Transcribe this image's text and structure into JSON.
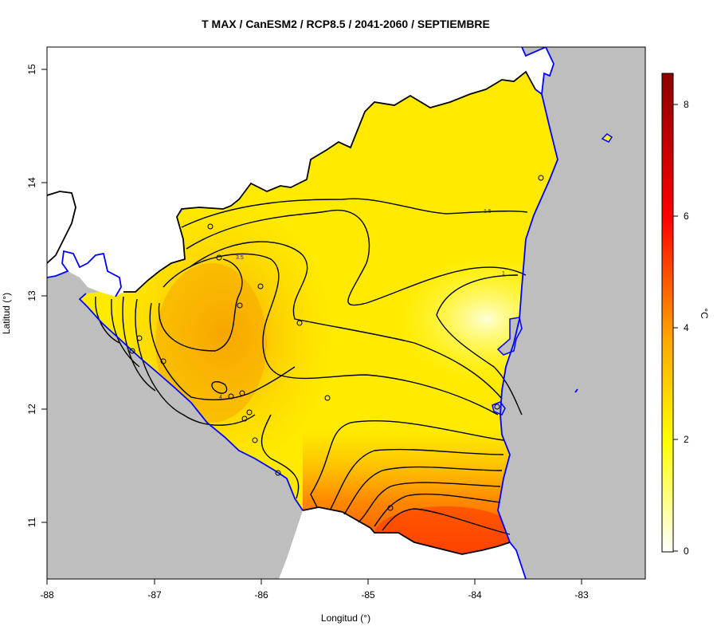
{
  "map": {
    "title": "T MAX / CanESM2 / RCP8.5 / 2041-2060 / SEPTIEMBRE",
    "xlabel": "Longitud (°)",
    "ylabel": "Latitud (°)",
    "x_ticks": [
      "-88",
      "-87",
      "-86",
      "-85",
      "-84",
      "-83"
    ],
    "y_ticks": [
      "11",
      "12",
      "13",
      "14",
      "15"
    ],
    "colorbar": {
      "label": "°C",
      "ticks": [
        "0",
        "2",
        "4",
        "6",
        "8"
      ],
      "range": [
        0,
        8.5
      ]
    },
    "contour_labels": [
      "1.5",
      "1",
      "3.5",
      "4"
    ],
    "colors": {
      "ocean": "#bebebe",
      "coastline": "#0000ff",
      "border": "#000000",
      "ramp_low": "#ffffff",
      "ramp_mid": "#ffff00",
      "ramp_high": "#ff0000",
      "ramp_max": "#8b0000"
    }
  }
}
